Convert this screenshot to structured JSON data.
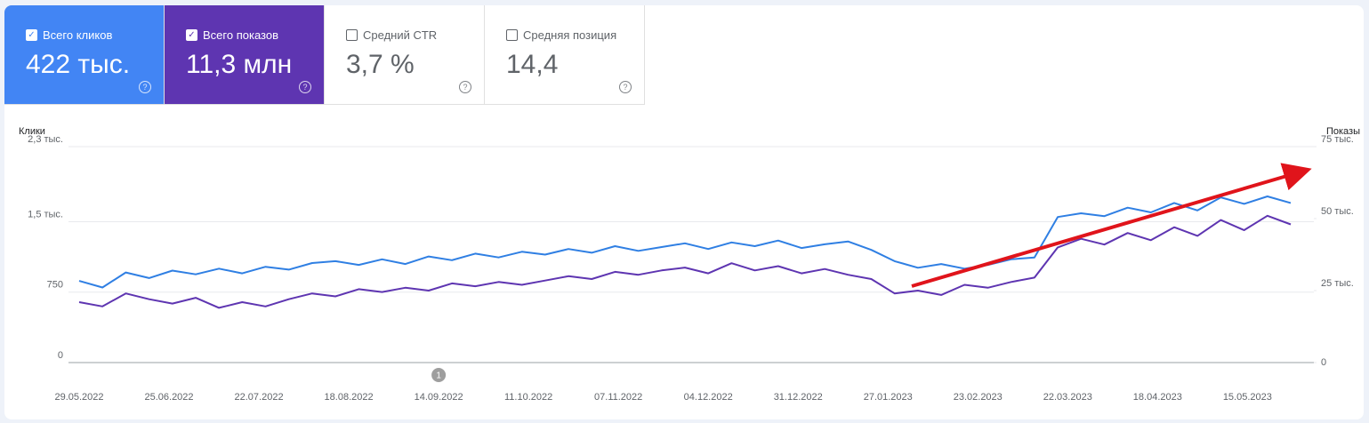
{
  "cards": [
    {
      "label": "Всего кликов",
      "value": "422 тыс.",
      "checked": true,
      "bg": "#4285f4",
      "fg": "#ffffff"
    },
    {
      "label": "Всего показов",
      "value": "11,3 млн",
      "checked": true,
      "bg": "#5e35b1",
      "fg": "#ffffff"
    },
    {
      "label": "Средний CTR",
      "value": "3,7 %",
      "checked": false,
      "bg": "#ffffff",
      "fg": "#5f6368"
    },
    {
      "label": "Средняя позиция",
      "value": "14,4",
      "checked": false,
      "bg": "#ffffff",
      "fg": "#5f6368"
    }
  ],
  "chart_data": {
    "type": "line",
    "ylabel": "Клики",
    "y2label": "Показы",
    "annotation": "1",
    "annotation_x": "14.09.2022",
    "x": [
      "29.05.2022",
      "05.06.2022",
      "12.06.2022",
      "19.06.2022",
      "26.06.2022",
      "03.07.2022",
      "10.07.2022",
      "17.07.2022",
      "24.07.2022",
      "31.07.2022",
      "07.08.2022",
      "14.08.2022",
      "21.08.2022",
      "28.08.2022",
      "04.09.2022",
      "11.09.2022",
      "18.09.2022",
      "25.09.2022",
      "02.10.2022",
      "09.10.2022",
      "16.10.2022",
      "23.10.2022",
      "30.10.2022",
      "06.11.2022",
      "13.11.2022",
      "20.11.2022",
      "27.11.2022",
      "04.12.2022",
      "11.12.2022",
      "18.12.2022",
      "25.12.2022",
      "01.01.2023",
      "08.01.2023",
      "15.01.2023",
      "22.01.2023",
      "29.01.2023",
      "05.02.2023",
      "12.02.2023",
      "19.02.2023",
      "26.02.2023",
      "05.03.2023",
      "12.03.2023",
      "19.03.2023",
      "26.03.2023",
      "02.04.2023",
      "09.04.2023",
      "16.04.2023",
      "23.04.2023",
      "30.04.2023",
      "07.05.2023",
      "14.05.2023",
      "21.05.2023",
      "28.05.2023"
    ],
    "xlim": [
      "29.05.2022",
      "28.05.2023"
    ],
    "xticks": [
      "29.05.2022",
      "25.06.2022",
      "22.07.2022",
      "18.08.2022",
      "14.09.2022",
      "11.10.2022",
      "07.11.2022",
      "04.12.2022",
      "31.12.2022",
      "27.01.2023",
      "23.02.2023",
      "22.03.2023",
      "18.04.2023",
      "15.05.2023"
    ],
    "series": [
      {
        "color": "#2f7fe3",
        "values": [
          870,
          800,
          960,
          900,
          980,
          940,
          1000,
          950,
          1020,
          990,
          1060,
          1080,
          1040,
          1100,
          1050,
          1130,
          1090,
          1160,
          1120,
          1180,
          1150,
          1210,
          1170,
          1240,
          1190,
          1230,
          1270,
          1210,
          1280,
          1240,
          1300,
          1220,
          1260,
          1290,
          1200,
          1080,
          1010,
          1050,
          1000,
          1040,
          1100,
          1120,
          1550,
          1590,
          1560,
          1650,
          1600,
          1700,
          1620,
          1760,
          1690,
          1770,
          1700
        ]
      },
      {
        "color": "#5e35b1",
        "axis": "y2",
        "values": [
          21000,
          19500,
          24000,
          22000,
          20500,
          22500,
          19000,
          21000,
          19500,
          22000,
          24000,
          23000,
          25500,
          24500,
          26000,
          25000,
          27500,
          26500,
          28000,
          27000,
          28500,
          30000,
          29000,
          31500,
          30500,
          32000,
          33000,
          31000,
          34500,
          32000,
          33500,
          31000,
          32500,
          30500,
          29000,
          24000,
          25000,
          23500,
          27000,
          26000,
          28000,
          29500,
          40000,
          43000,
          41000,
          45000,
          42500,
          47000,
          44000,
          49500,
          46000,
          51000,
          48000
        ]
      }
    ],
    "ylim": [
      0,
      2300
    ],
    "yticks": [
      0,
      750,
      {
        "value": 1500,
        "label": "1,5 тыс."
      },
      {
        "value": 2300,
        "label": "2,3 тыс."
      }
    ],
    "y2lim": [
      0,
      75000
    ],
    "y2ticks": [
      0,
      {
        "value": 25000,
        "label": "25 тыс."
      },
      {
        "value": 50000,
        "label": "50 тыс."
      },
      {
        "value": 75000,
        "label": "75 тыс."
      }
    ],
    "grid": true
  }
}
